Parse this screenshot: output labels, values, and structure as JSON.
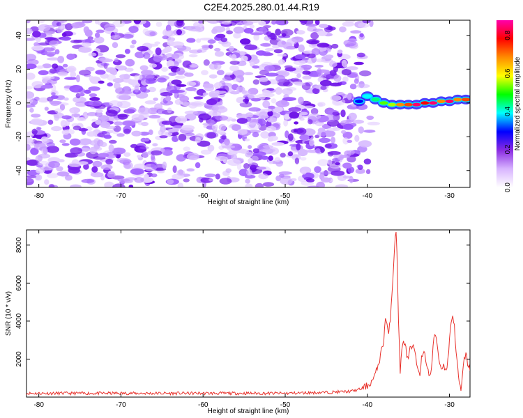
{
  "title": "C2E4.2025.280.01.44.R19",
  "chart_data": [
    {
      "type": "heatmap",
      "title": "C2E4.2025.280.01.44.R19",
      "xlabel": "Height of straight line (km)",
      "ylabel": "Frequency (Hz)",
      "xlim": [
        -81.5,
        -27.5
      ],
      "ylim": [
        -50,
        49
      ],
      "xticks": [
        -80,
        -70,
        -60,
        -50,
        -40,
        -30
      ],
      "yticks": [
        -40,
        -20,
        0,
        20,
        40
      ],
      "noise_region_x": [
        -81.5,
        -40
      ],
      "signal_track": [
        {
          "x": -41,
          "y": 1,
          "amp": 0.25
        },
        {
          "x": -40,
          "y": 4,
          "amp": 0.35
        },
        {
          "x": -39,
          "y": 2,
          "amp": 0.4
        },
        {
          "x": -38,
          "y": 0,
          "amp": 0.5
        },
        {
          "x": -37,
          "y": -1,
          "amp": 0.55
        },
        {
          "x": -36,
          "y": -1,
          "amp": 0.7
        },
        {
          "x": -35,
          "y": -1,
          "amp": 0.75
        },
        {
          "x": -34,
          "y": -1,
          "amp": 0.85
        },
        {
          "x": -33,
          "y": 0,
          "amp": 0.8
        },
        {
          "x": -32,
          "y": 0,
          "amp": 0.85
        },
        {
          "x": -31,
          "y": 1,
          "amp": 0.7
        },
        {
          "x": -30,
          "y": 1,
          "amp": 0.85
        },
        {
          "x": -29,
          "y": 2,
          "amp": 0.7
        },
        {
          "x": -28,
          "y": 2,
          "amp": 0.75
        }
      ],
      "colorbar": {
        "label": "Normalized spectral amplitude",
        "range": [
          0.0,
          0.88
        ],
        "ticks": [
          0.0,
          0.2,
          0.4,
          0.6,
          0.8
        ],
        "colors": [
          "#ffffff",
          "#d8b4ff",
          "#8a2be2",
          "#0000ff",
          "#00ffff",
          "#00ff00",
          "#ffff00",
          "#ff8c00",
          "#ff0000",
          "#ff00aa"
        ]
      }
    },
    {
      "type": "line",
      "xlabel": "Height of straight line (km)",
      "ylabel": "SNR (10 * v/v)",
      "xlim": [
        -81.5,
        -27.5
      ],
      "ylim": [
        0,
        8800
      ],
      "xticks": [
        -80,
        -70,
        -60,
        -50,
        -40,
        -30
      ],
      "yticks": [
        2000,
        4000,
        6000,
        8000
      ],
      "color": "#e8302a",
      "x": [
        -81.5,
        -70,
        -60,
        -50,
        -45,
        -42,
        -41,
        -40,
        -39.5,
        -39,
        -38.5,
        -38,
        -37.8,
        -37.6,
        -37.4,
        -37.2,
        -37.0,
        -36.8,
        -36.6,
        -36.5,
        -36.4,
        -36.2,
        -36.0,
        -35.8,
        -35.6,
        -35.4,
        -35.2,
        -35.0,
        -34.8,
        -34.6,
        -34.4,
        -34.2,
        -34.0,
        -33.8,
        -33.6,
        -33.4,
        -33.2,
        -33.0,
        -32.8,
        -32.6,
        -32.4,
        -32.2,
        -32.0,
        -31.8,
        -31.6,
        -31.4,
        -31.2,
        -31.0,
        -30.8,
        -30.6,
        -30.4,
        -30.2,
        -30.0,
        -29.8,
        -29.6,
        -29.4,
        -29.2,
        -29.0,
        -28.8,
        -28.6,
        -28.4,
        -28.2,
        -28.0,
        -27.8,
        -27.5
      ],
      "y": [
        200,
        200,
        200,
        200,
        250,
        300,
        400,
        600,
        800,
        1200,
        2000,
        3000,
        4200,
        3800,
        3200,
        4200,
        5500,
        7000,
        8600,
        8700,
        7500,
        4000,
        1400,
        2400,
        3000,
        2800,
        2200,
        1900,
        2600,
        2400,
        2800,
        2200,
        1800,
        1500,
        1300,
        2000,
        2200,
        2300,
        1800,
        1400,
        1000,
        1500,
        2600,
        3300,
        3200,
        2400,
        1800,
        1500,
        1700,
        1600,
        1400,
        1900,
        3000,
        4000,
        4300,
        3700,
        2500,
        1500,
        700,
        300,
        1200,
        2000,
        2300,
        1800,
        1400
      ]
    }
  ]
}
